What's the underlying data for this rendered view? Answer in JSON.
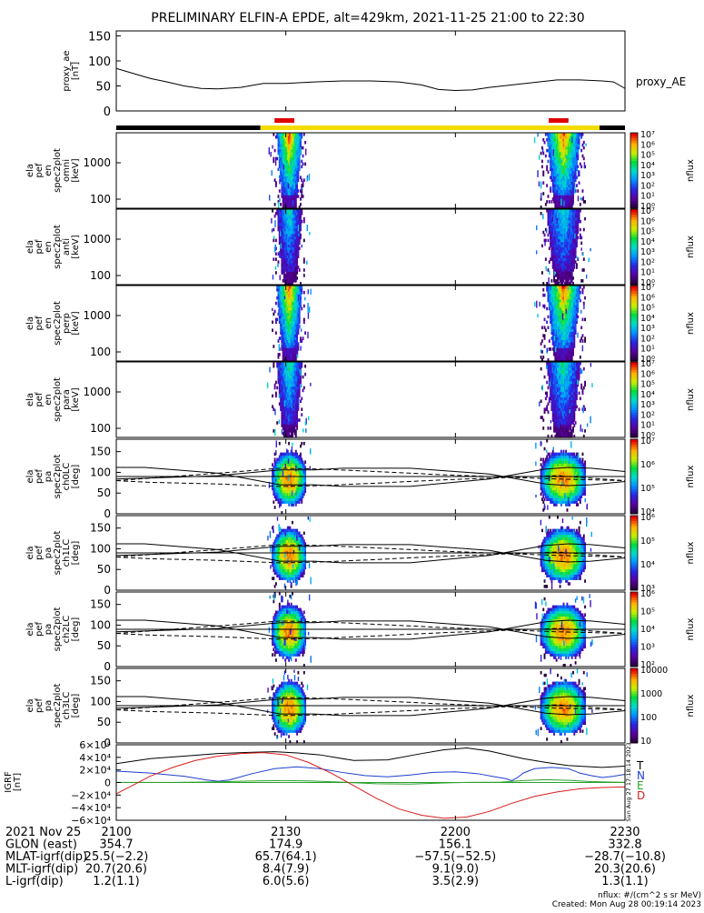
{
  "title": "PRELIMINARY ELFIN-A EPDE, alt=429km, 2021-11-25 21:00 to 22:30",
  "proxy_ae": {
    "ylabel_line1": "proxy_ae",
    "ylabel_line2": "[nT]",
    "ticks": [
      "0",
      "50",
      "100",
      "150"
    ],
    "ylim": [
      0,
      160
    ],
    "legend": "proxy_AE",
    "series": [
      [
        0,
        85
      ],
      [
        3,
        75
      ],
      [
        6,
        65
      ],
      [
        9,
        58
      ],
      [
        12,
        50
      ],
      [
        15,
        45
      ],
      [
        18,
        44
      ],
      [
        22,
        47
      ],
      [
        26,
        55
      ],
      [
        30,
        55
      ],
      [
        35,
        58
      ],
      [
        40,
        60
      ],
      [
        45,
        60
      ],
      [
        50,
        58
      ],
      [
        54,
        52
      ],
      [
        57,
        43
      ],
      [
        60,
        41
      ],
      [
        63,
        42
      ],
      [
        66,
        47
      ],
      [
        70,
        52
      ],
      [
        74,
        57
      ],
      [
        78,
        62
      ],
      [
        82,
        62
      ],
      [
        86,
        60
      ],
      [
        88,
        58
      ],
      [
        90,
        45
      ]
    ]
  },
  "bar_segments": {
    "black": [
      [
        0,
        25.5
      ],
      [
        85.5,
        90
      ]
    ],
    "yellow": [
      [
        25.5,
        85.5
      ]
    ],
    "red": [
      [
        28,
        31.5
      ],
      [
        76.5,
        80
      ]
    ]
  },
  "energy_panels": [
    {
      "label": [
        "ela",
        "pef",
        "en",
        "spec2plot",
        "omni",
        "[keV]"
      ],
      "ticks": [
        "100",
        "1000"
      ],
      "cbar_ticks": [
        "10⁰",
        "10¹",
        "10²",
        "10³",
        "10⁴",
        "10⁵",
        "10⁶",
        "10⁷"
      ]
    },
    {
      "label": [
        "ela",
        "pef",
        "en",
        "spec2plot",
        "anti",
        "[keV]"
      ],
      "ticks": [
        "100",
        "1000"
      ],
      "cbar_ticks": [
        "10⁰",
        "10¹",
        "10²",
        "10³",
        "10⁴",
        "10⁵",
        "10⁶",
        "10⁷"
      ]
    },
    {
      "label": [
        "ela",
        "pef",
        "en",
        "spec2plot",
        "perp",
        "[keV]"
      ],
      "ticks": [
        "100",
        "1000"
      ],
      "cbar_ticks": [
        "10⁰",
        "10¹",
        "10²",
        "10³",
        "10⁴",
        "10⁵",
        "10⁶",
        "10⁷"
      ]
    },
    {
      "label": [
        "ela",
        "pef",
        "en",
        "spec2plot",
        "para",
        "[keV]"
      ],
      "ticks": [
        "100",
        "1000"
      ],
      "cbar_ticks": [
        "10⁰",
        "10¹",
        "10²",
        "10³",
        "10⁴",
        "10⁵",
        "10⁶",
        "10⁷"
      ]
    }
  ],
  "pa_panels": [
    {
      "label": [
        "ela",
        "pef",
        "pa",
        "spec2plot",
        "ch0LC",
        "[deg]"
      ],
      "ticks": [
        "0",
        "50",
        "100",
        "150"
      ],
      "cbar_ticks": [
        "10⁴",
        "10⁵",
        "10⁶",
        "10⁷"
      ]
    },
    {
      "label": [
        "ela",
        "pef",
        "pa",
        "spec2plot",
        "ch1LC",
        "[deg]"
      ],
      "ticks": [
        "0",
        "50",
        "100",
        "150"
      ],
      "cbar_ticks": [
        "10³",
        "10⁴",
        "10⁵",
        "10⁶"
      ]
    },
    {
      "label": [
        "ela",
        "pef",
        "pa",
        "spec2plot",
        "ch2LC",
        "[deg]"
      ],
      "ticks": [
        "0",
        "50",
        "100",
        "150"
      ],
      "cbar_ticks": [
        "10²",
        "10³",
        "10⁴",
        "10⁵",
        "10⁶"
      ]
    },
    {
      "label": [
        "ela",
        "pef",
        "pa",
        "spec2plot",
        "ch3LC",
        "[deg]"
      ],
      "ticks": [
        "0",
        "50",
        "100",
        "150"
      ],
      "cbar_ticks": [
        "10",
        "100",
        "1000",
        "10000"
      ]
    }
  ],
  "cbar_label": "nflux",
  "bfield": {
    "label_line1": "IGRF",
    "label_line2": "[nT]",
    "ticks": [
      "−6×10⁴",
      "−4×10⁴",
      "−2×10⁴",
      "0",
      "2×10⁴",
      "4×10⁴",
      "6×10⁴"
    ],
    "ylim": [
      -60000,
      60000
    ],
    "legend": [
      {
        "name": "T",
        "color": "#000000"
      },
      {
        "name": "N",
        "color": "#1f3fd0"
      },
      {
        "name": "E",
        "color": "#2ca02c"
      },
      {
        "name": "D",
        "color": "#d81e1e"
      }
    ],
    "side_text": "Sun Aug 27 17:18:14 2023",
    "series": {
      "T": [
        [
          0,
          30000
        ],
        [
          6,
          38000
        ],
        [
          12,
          42000
        ],
        [
          18,
          46000
        ],
        [
          24,
          48000
        ],
        [
          28,
          49000
        ],
        [
          32,
          47000
        ],
        [
          36,
          44000
        ],
        [
          42,
          35000
        ],
        [
          48,
          36000
        ],
        [
          54,
          46000
        ],
        [
          58,
          52000
        ],
        [
          62,
          55000
        ],
        [
          66,
          50000
        ],
        [
          72,
          38000
        ],
        [
          76,
          32000
        ],
        [
          80,
          27000
        ],
        [
          84,
          25000
        ],
        [
          86,
          24000
        ],
        [
          90,
          26000
        ]
      ],
      "N": [
        [
          0,
          18000
        ],
        [
          6,
          15000
        ],
        [
          12,
          10000
        ],
        [
          16,
          4000
        ],
        [
          18,
          2000
        ],
        [
          20,
          4000
        ],
        [
          24,
          14000
        ],
        [
          28,
          22000
        ],
        [
          32,
          25000
        ],
        [
          36,
          22000
        ],
        [
          40,
          16000
        ],
        [
          44,
          11000
        ],
        [
          48,
          9000
        ],
        [
          52,
          12000
        ],
        [
          56,
          16000
        ],
        [
          60,
          17000
        ],
        [
          64,
          14000
        ],
        [
          67,
          9000
        ],
        [
          69,
          6000
        ],
        [
          70,
          3000
        ],
        [
          71,
          8000
        ],
        [
          72,
          15000
        ],
        [
          74,
          22000
        ],
        [
          77,
          24000
        ],
        [
          80,
          22000
        ],
        [
          82,
          15000
        ],
        [
          84,
          11000
        ],
        [
          86,
          8000
        ],
        [
          88,
          10000
        ],
        [
          90,
          13000
        ]
      ],
      "E": [
        [
          0,
          200
        ],
        [
          10,
          200
        ],
        [
          14,
          600
        ],
        [
          20,
          1500
        ],
        [
          26,
          2800
        ],
        [
          30,
          3000
        ],
        [
          34,
          2500
        ],
        [
          40,
          500
        ],
        [
          46,
          -2000
        ],
        [
          52,
          -2500
        ],
        [
          58,
          -800
        ],
        [
          62,
          200
        ],
        [
          68,
          600
        ],
        [
          72,
          3000
        ],
        [
          76,
          4500
        ],
        [
          80,
          3500
        ],
        [
          84,
          1500
        ],
        [
          88,
          600
        ],
        [
          90,
          400
        ]
      ],
      "D": [
        [
          0,
          -18000
        ],
        [
          3,
          -4000
        ],
        [
          6,
          10000
        ],
        [
          10,
          24000
        ],
        [
          14,
          35000
        ],
        [
          18,
          42000
        ],
        [
          22,
          46000
        ],
        [
          26,
          47500
        ],
        [
          30,
          44000
        ],
        [
          34,
          32000
        ],
        [
          38,
          15000
        ],
        [
          42,
          -5000
        ],
        [
          46,
          -25000
        ],
        [
          50,
          -42000
        ],
        [
          54,
          -52000
        ],
        [
          58,
          -57000
        ],
        [
          62,
          -55000
        ],
        [
          66,
          -46000
        ],
        [
          70,
          -33000
        ],
        [
          74,
          -22000
        ],
        [
          78,
          -15000
        ],
        [
          82,
          -10000
        ],
        [
          86,
          -8000
        ],
        [
          90,
          -7000
        ]
      ]
    }
  },
  "time_axis": {
    "ticks": [
      {
        "t": 0,
        "label": "2100"
      },
      {
        "t": 30,
        "label": "2130"
      },
      {
        "t": 60,
        "label": "2200"
      },
      {
        "t": 90,
        "label": "2230"
      }
    ]
  },
  "ephemeris": {
    "rows": [
      {
        "label": "2021 Nov 25",
        "values": [
          "",
          "",
          "",
          ""
        ]
      },
      {
        "label": "GLON (east)",
        "values": [
          "354.7",
          "174.9",
          "156.1",
          "332.8"
        ]
      },
      {
        "label": "MLAT-igrf(dip)",
        "values": [
          "25.5(−2.2)",
          "65.7(64.1)",
          "−57.5(−52.5)",
          "−28.7(−10.8)"
        ]
      },
      {
        "label": "MLT-igrf(dip)",
        "values": [
          "20.7(20.6)",
          "8.4(7.9)",
          "9.1(9.0)",
          "20.3(20.6)"
        ]
      },
      {
        "label": "L-igrf(dip)",
        "values": [
          "1.2(1.1)",
          "6.0(5.6)",
          "3.5(2.9)",
          "1.3(1.1)"
        ]
      }
    ]
  },
  "footer": {
    "units": "nflux: #/(cm^2 s sr MeV)",
    "created": "Created: Mon Aug 28 00:19:14 2023"
  }
}
